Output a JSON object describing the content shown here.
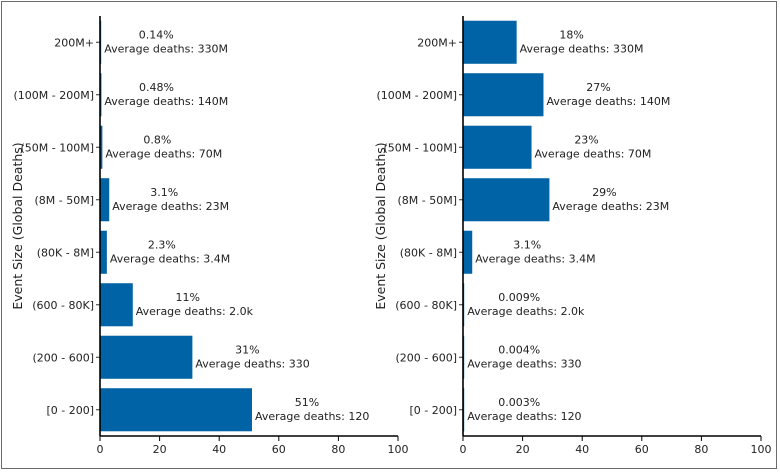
{
  "chart_data": [
    {
      "type": "bar",
      "orientation": "horizontal",
      "ylabel": "Event Size (Global Deaths)",
      "xlim": [
        0,
        100
      ],
      "xticks": [
        0,
        20,
        40,
        60,
        80,
        100
      ],
      "categories": [
        "200M+",
        "(100M - 200M]",
        "(50M - 100M]",
        "(8M - 50M]",
        "(80K - 8M]",
        "(600 - 80K]",
        "(200 - 600]",
        "[0 - 200]"
      ],
      "values": [
        0.14,
        0.48,
        0.8,
        3.1,
        2.3,
        11,
        31,
        51
      ],
      "value_labels": [
        "0.14%",
        "0.48%",
        "0.8%",
        "3.1%",
        "2.3%",
        "11%",
        "31%",
        "51%"
      ],
      "annotations": [
        "Average deaths: 330M",
        "Average deaths: 140M",
        "Average deaths: 70M",
        "Average deaths: 23M",
        "Average deaths: 3.4M",
        "Average deaths: 2.0k",
        "Average deaths: 330",
        "Average deaths: 120"
      ],
      "bar_color": "#0063a5",
      "grid": false
    },
    {
      "type": "bar",
      "orientation": "horizontal",
      "ylabel": "Event Size (Global Deaths)",
      "xlim": [
        0,
        100
      ],
      "xticks": [
        0,
        20,
        40,
        60,
        80,
        100
      ],
      "categories": [
        "200M+",
        "(100M - 200M]",
        "(50M - 100M]",
        "(8M - 50M]",
        "(80K - 8M]",
        "(600 - 80K]",
        "(200 - 600]",
        "[0 - 200]"
      ],
      "values": [
        18,
        27,
        23,
        29,
        3.1,
        0.009,
        0.004,
        0.003
      ],
      "value_labels": [
        "18%",
        "27%",
        "23%",
        "29%",
        "3.1%",
        "0.009%",
        "0.004%",
        "0.003%"
      ],
      "annotations": [
        "Average deaths: 330M",
        "Average deaths: 140M",
        "Average deaths: 70M",
        "Average deaths: 23M",
        "Average deaths: 3.4M",
        "Average deaths: 2.0k",
        "Average deaths: 330",
        "Average deaths: 120"
      ],
      "bar_color": "#0063a5",
      "grid": false
    }
  ]
}
